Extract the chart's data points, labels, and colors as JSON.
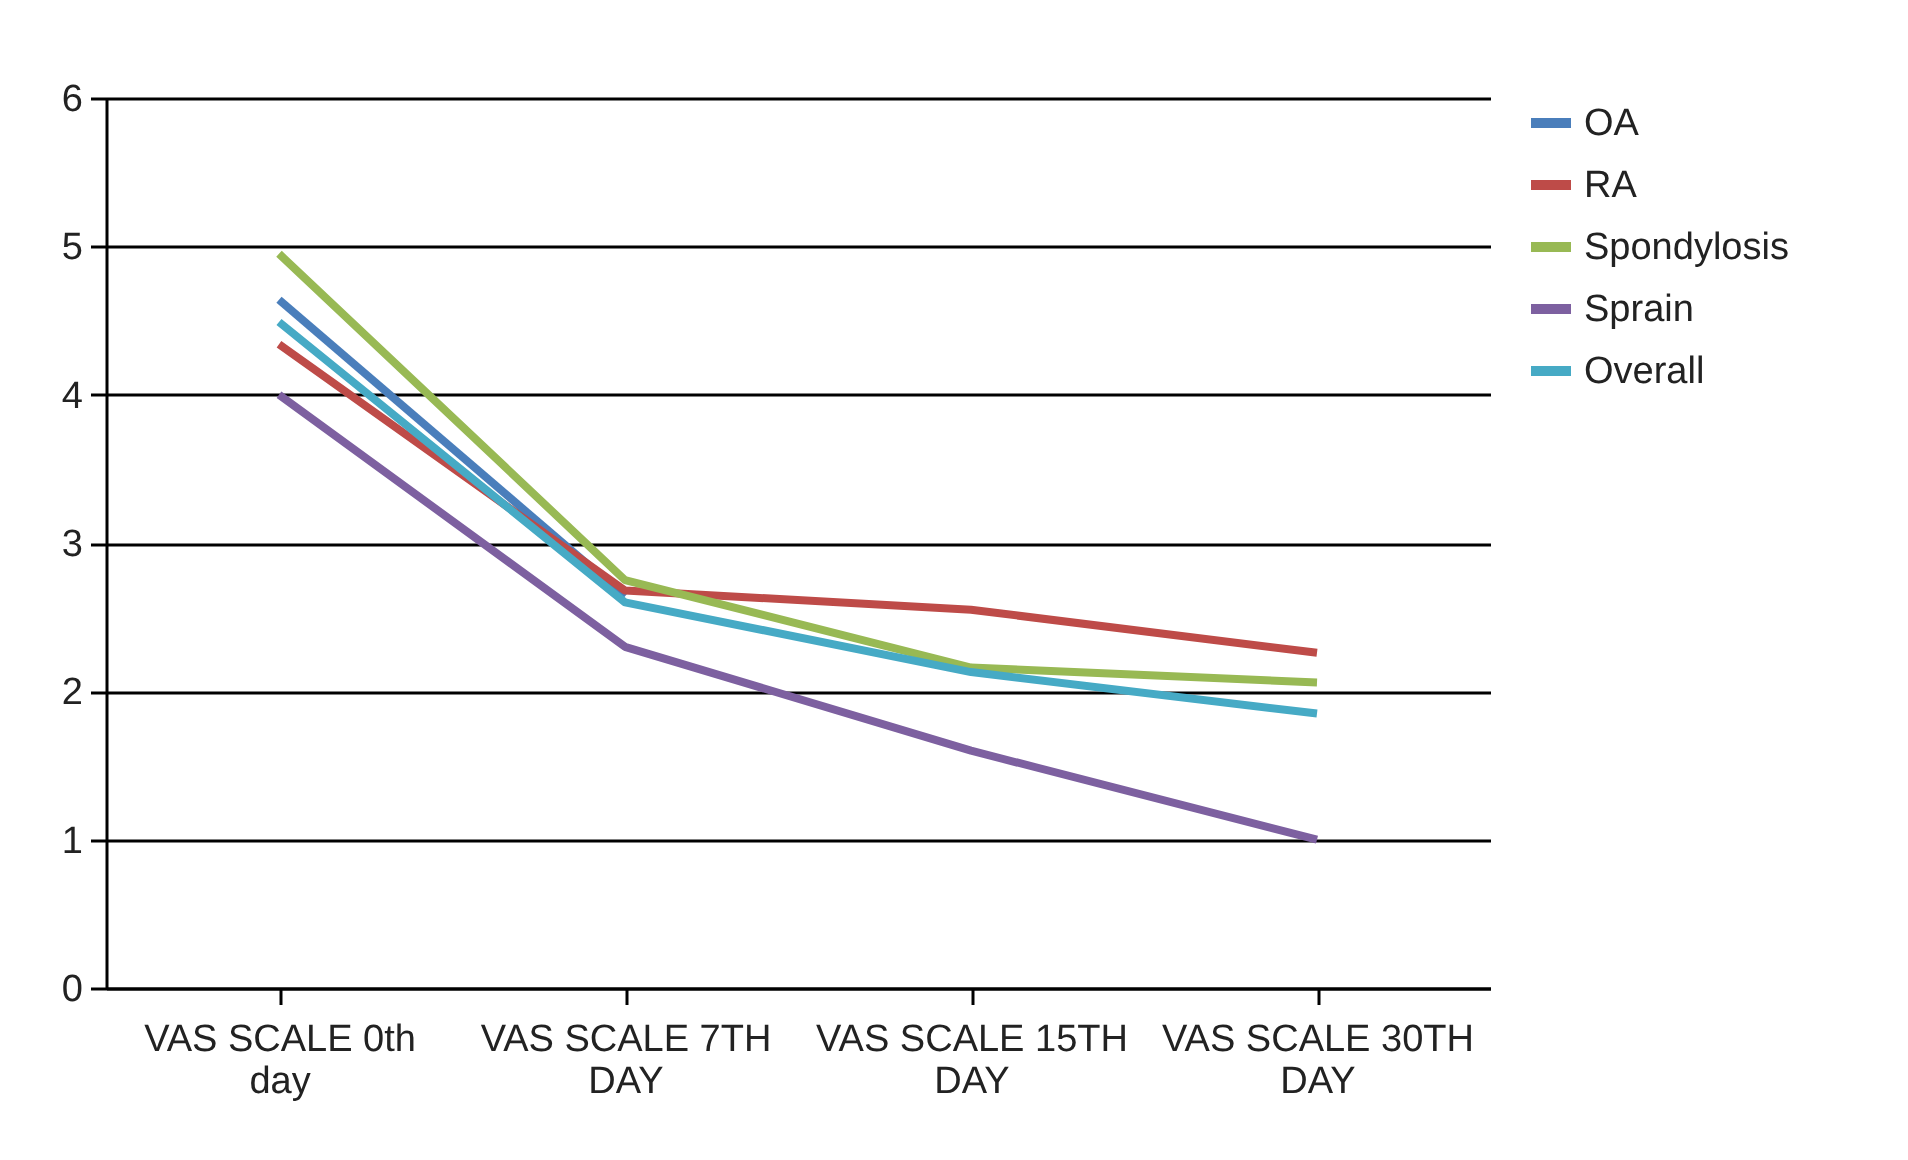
{
  "chart_data": {
    "type": "line",
    "categories": [
      "VAS SCALE 0th day",
      "VAS SCALE 7TH DAY",
      "VAS SCALE 15TH DAY",
      "VAS SCALE 30TH DAY"
    ],
    "series": [
      {
        "name": "OA",
        "color": "#4a7ebb",
        "values": [
          4.64,
          2.64,
          null,
          null
        ]
      },
      {
        "name": "RA",
        "color": "#be4b48",
        "values": [
          4.34,
          2.68,
          2.55,
          2.26
        ]
      },
      {
        "name": "Spondylosis",
        "color": "#98b954",
        "values": [
          4.95,
          2.75,
          2.16,
          2.06
        ]
      },
      {
        "name": "Sprain",
        "color": "#7d60a0",
        "values": [
          4.0,
          2.3,
          1.6,
          1.0
        ]
      },
      {
        "name": "Overall",
        "color": "#46aac5",
        "values": [
          4.49,
          2.6,
          2.13,
          1.85
        ]
      }
    ],
    "ylim": [
      0,
      6
    ],
    "yticks": [
      0,
      1,
      2,
      3,
      4,
      5,
      6
    ],
    "grid": "y",
    "legend": "right",
    "marker": "none",
    "line_style": "solid"
  }
}
